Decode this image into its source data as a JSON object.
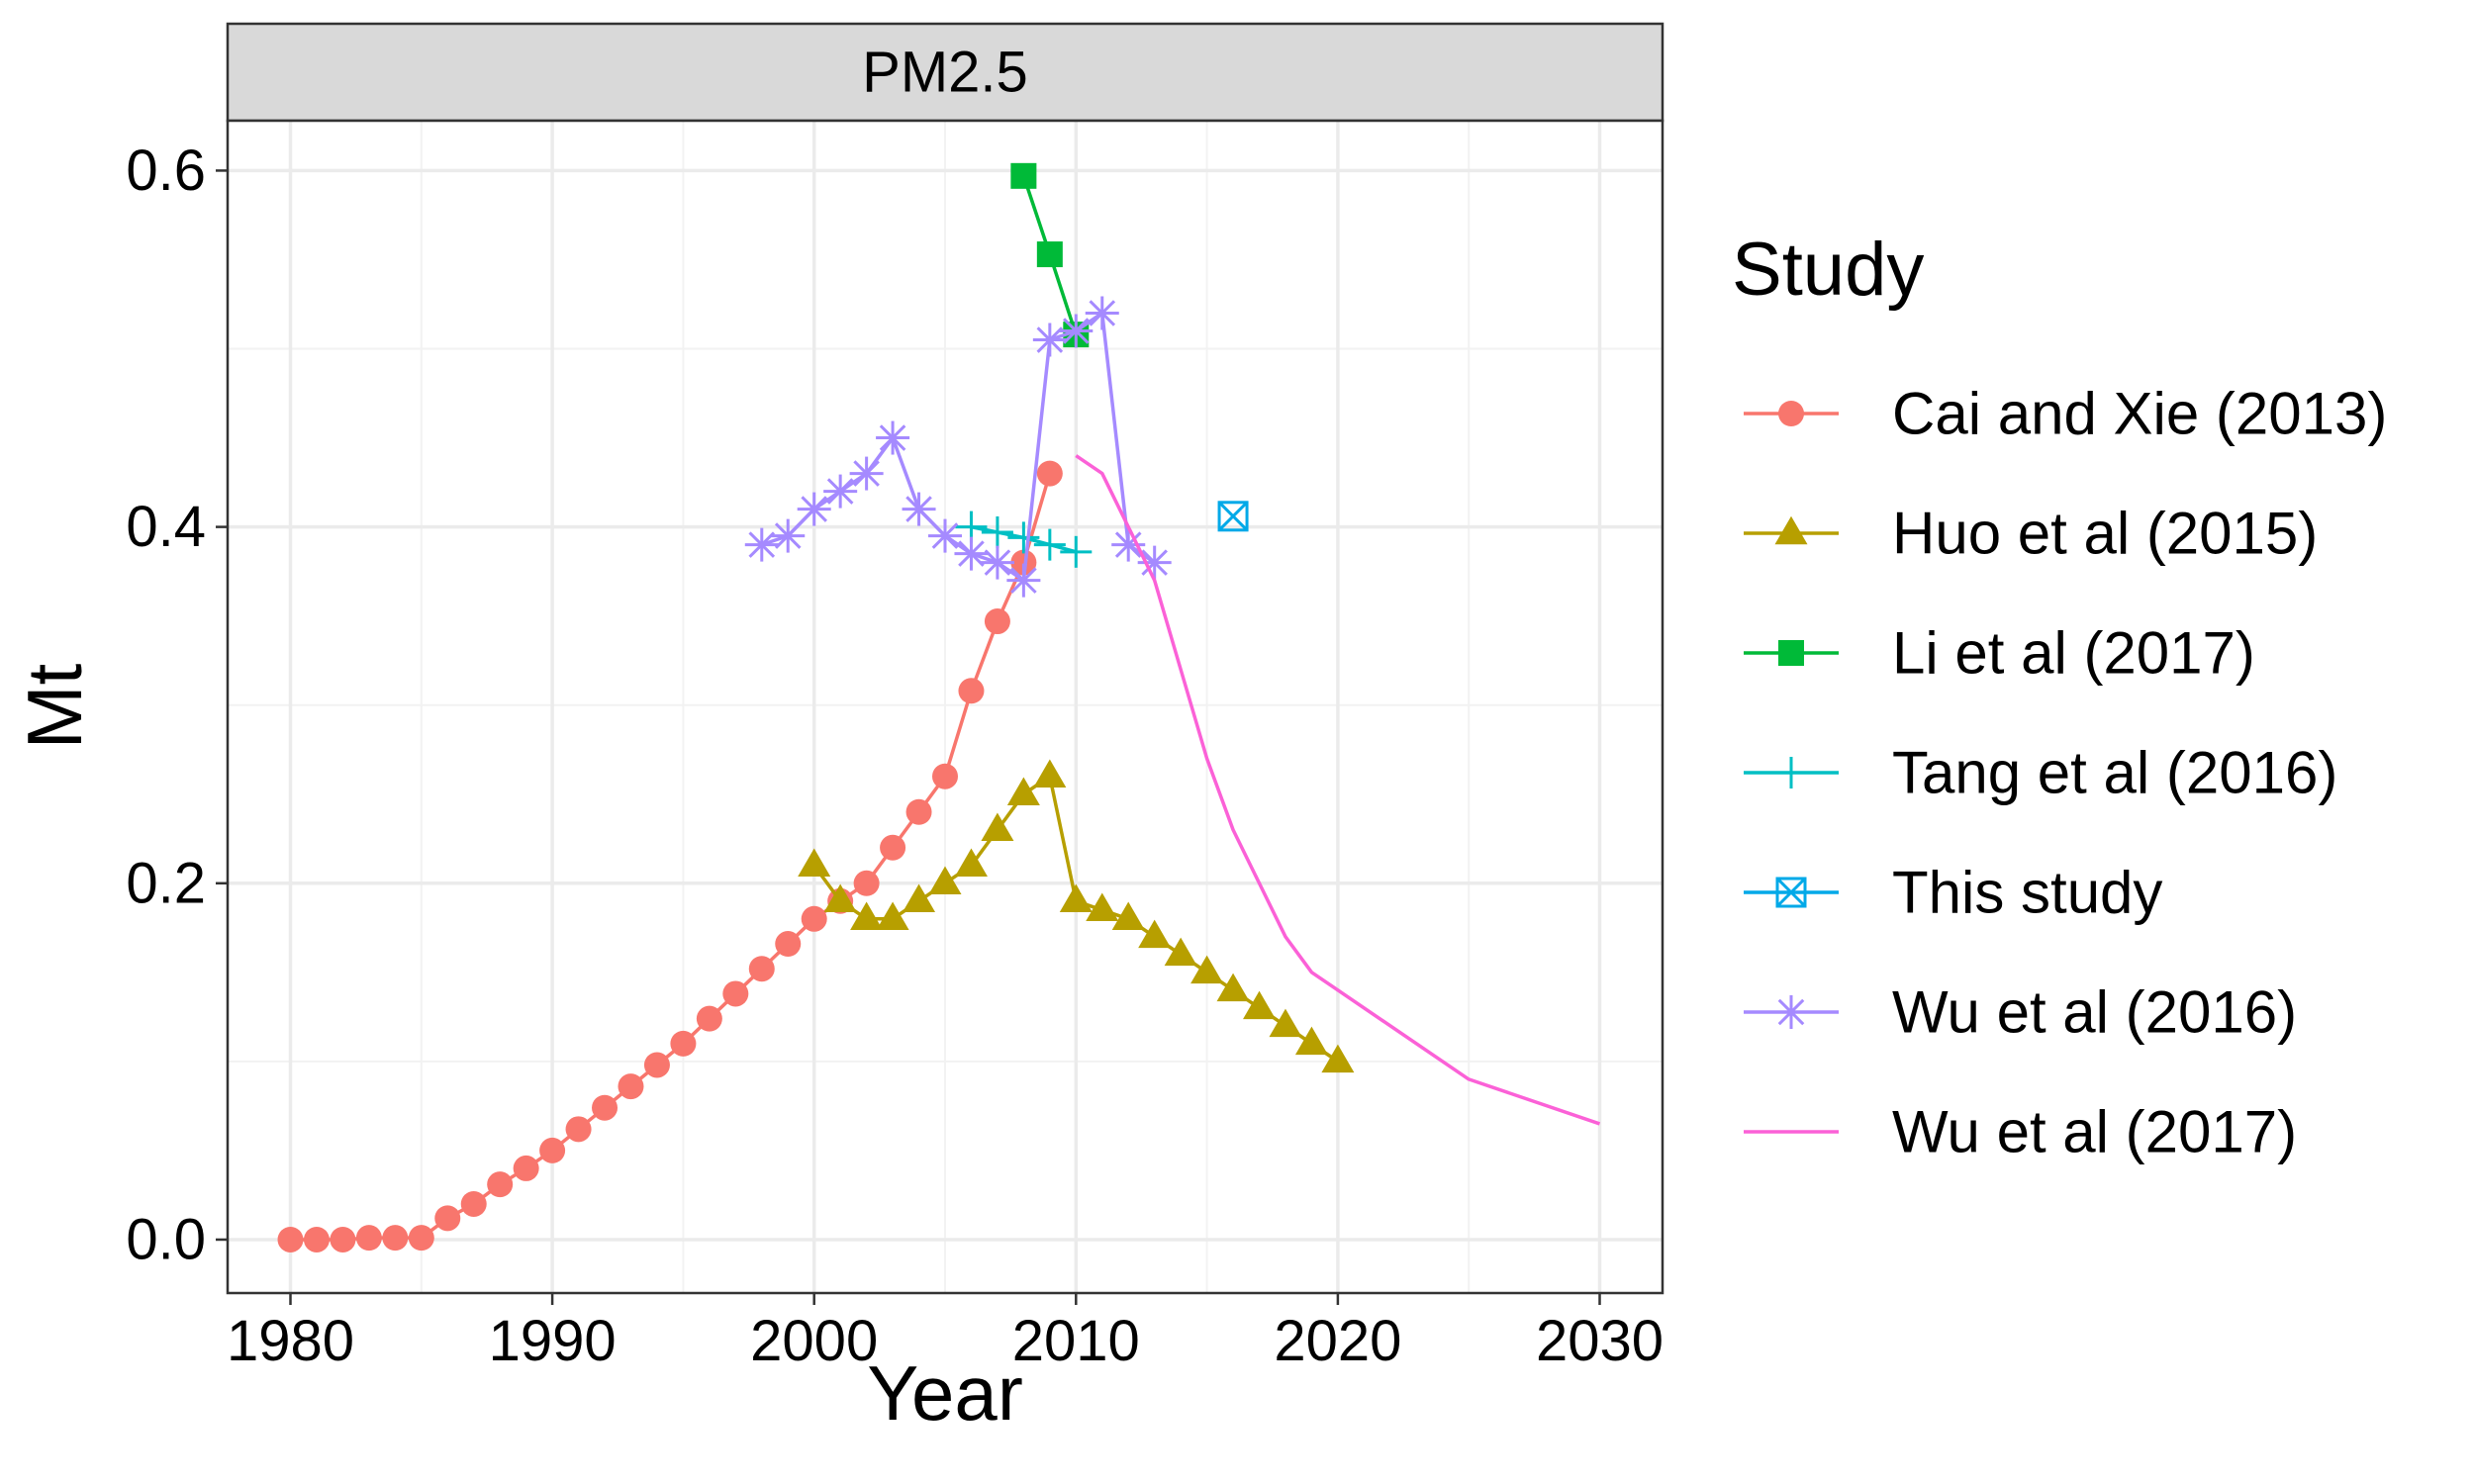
{
  "chart_data": {
    "type": "line",
    "title": "",
    "facet_label": "PM2.5",
    "xlabel": "Year",
    "ylabel": "Mt",
    "xlim": [
      1977.6,
      2032.4
    ],
    "ylim": [
      -0.03,
      0.628
    ],
    "xticks": [
      1980,
      1990,
      2000,
      2010,
      2020,
      2030
    ],
    "xtick_labels": [
      "1980",
      "1990",
      "2000",
      "2010",
      "2020",
      "2030"
    ],
    "yticks": [
      0.0,
      0.2,
      0.4,
      0.6
    ],
    "ytick_labels": [
      "0.0",
      "0.2",
      "0.4",
      "0.6"
    ],
    "grid": true,
    "legend_title": "Study",
    "legend_position": "right",
    "series": [
      {
        "name": "Cai and Xie (2013)",
        "color": "#F8766D",
        "marker": "circle",
        "line": true,
        "x": [
          1980,
          1981,
          1982,
          1983,
          1984,
          1985,
          1986,
          1987,
          1988,
          1989,
          1990,
          1991,
          1992,
          1993,
          1994,
          1995,
          1996,
          1997,
          1998,
          1999,
          2000,
          2001,
          2002,
          2003,
          2004,
          2005,
          2006,
          2007,
          2008,
          2009
        ],
        "y": [
          0.0,
          0.0,
          0.0,
          0.001,
          0.001,
          0.001,
          0.012,
          0.02,
          0.031,
          0.04,
          0.05,
          0.062,
          0.074,
          0.086,
          0.098,
          0.11,
          0.124,
          0.138,
          0.152,
          0.166,
          0.18,
          0.19,
          0.2,
          0.22,
          0.24,
          0.26,
          0.308,
          0.347,
          0.38,
          0.43
        ]
      },
      {
        "name": "Huo et al (2015)",
        "color": "#B79F00",
        "marker": "triangle",
        "line": true,
        "x": [
          2000,
          2001,
          2002,
          2003,
          2004,
          2005,
          2006,
          2007,
          2008,
          2009,
          2010,
          2011,
          2012,
          2013,
          2014,
          2015,
          2016,
          2017,
          2018,
          2019,
          2020
        ],
        "y": [
          0.21,
          0.19,
          0.18,
          0.18,
          0.19,
          0.2,
          0.21,
          0.23,
          0.25,
          0.26,
          0.19,
          0.185,
          0.18,
          0.17,
          0.16,
          0.15,
          0.14,
          0.13,
          0.12,
          0.11,
          0.1
        ]
      },
      {
        "name": "Li et al (2017)",
        "color": "#00BA38",
        "marker": "square",
        "line": true,
        "x": [
          2008,
          2009,
          2010
        ],
        "y": [
          0.597,
          0.553,
          0.508
        ]
      },
      {
        "name": "Tang et al (2016)",
        "color": "#00BFC4",
        "marker": "plus",
        "line": true,
        "x": [
          2006,
          2007,
          2008,
          2009,
          2010
        ],
        "y": [
          0.4,
          0.397,
          0.394,
          0.39,
          0.386
        ]
      },
      {
        "name": "This study",
        "color": "#00A9E8",
        "marker": "boxcross",
        "line": true,
        "x": [
          2016
        ],
        "y": [
          0.406
        ]
      },
      {
        "name": "Wu et al (2016)",
        "color": "#A58AFF",
        "marker": "asterisk",
        "line": true,
        "x": [
          1998,
          1999,
          2000,
          2001,
          2002,
          2003,
          2004,
          2005,
          2006,
          2007,
          2008,
          2009,
          2010,
          2011,
          2012,
          2013
        ],
        "y": [
          0.39,
          0.395,
          0.41,
          0.42,
          0.43,
          0.45,
          0.41,
          0.395,
          0.385,
          0.38,
          0.37,
          0.505,
          0.51,
          0.52,
          0.39,
          0.38
        ]
      },
      {
        "name": "Wu et al (2017)",
        "color": "#FB61D7",
        "marker": "none",
        "line": true,
        "x": [
          2010,
          2011,
          2012,
          2013,
          2014,
          2015,
          2016,
          2017,
          2018,
          2019,
          2020,
          2025,
          2030
        ],
        "y": [
          0.44,
          0.43,
          0.4,
          0.37,
          0.32,
          0.27,
          0.23,
          0.2,
          0.17,
          0.15,
          0.14,
          0.09,
          0.065
        ]
      }
    ]
  }
}
